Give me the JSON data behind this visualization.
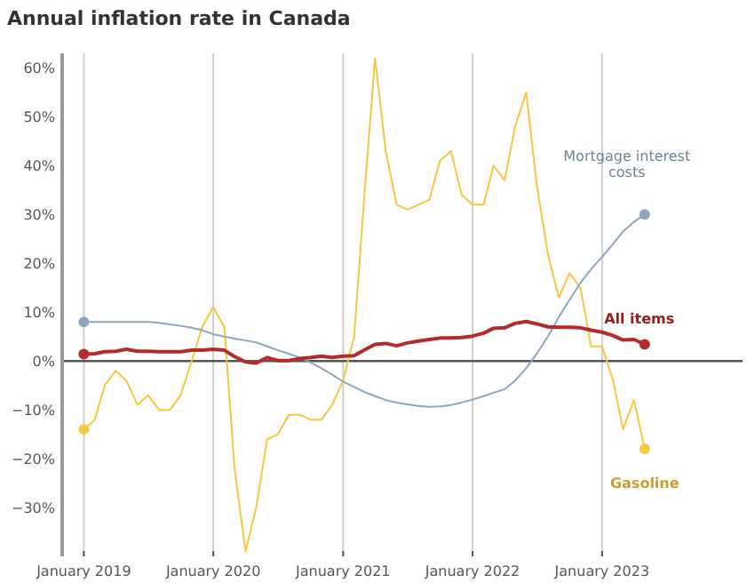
{
  "chart_data": {
    "type": "line",
    "title": "Annual inflation rate in Canada",
    "x": [
      "2019-01",
      "2019-02",
      "2019-03",
      "2019-04",
      "2019-05",
      "2019-06",
      "2019-07",
      "2019-08",
      "2019-09",
      "2019-10",
      "2019-11",
      "2019-12",
      "2020-01",
      "2020-02",
      "2020-03",
      "2020-04",
      "2020-05",
      "2020-06",
      "2020-07",
      "2020-08",
      "2020-09",
      "2020-10",
      "2020-11",
      "2020-12",
      "2021-01",
      "2021-02",
      "2021-03",
      "2021-04",
      "2021-05",
      "2021-06",
      "2021-07",
      "2021-08",
      "2021-09",
      "2021-10",
      "2021-11",
      "2021-12",
      "2022-01",
      "2022-02",
      "2022-03",
      "2022-04",
      "2022-05",
      "2022-06",
      "2022-07",
      "2022-08",
      "2022-09",
      "2022-10",
      "2022-11",
      "2022-12",
      "2023-01",
      "2023-02",
      "2023-03",
      "2023-04",
      "2023-05"
    ],
    "series": [
      {
        "name": "Gasoline",
        "color": "#f5c842",
        "values": [
          -14,
          -12,
          -5,
          -2,
          -4,
          -9,
          -7,
          -10,
          -10,
          -7,
          0,
          7,
          11,
          7,
          -22,
          -39,
          -30,
          -16,
          -15,
          -11,
          -11,
          -12,
          -12,
          -9,
          -4,
          5,
          33,
          62,
          43,
          32,
          31,
          32,
          33,
          41,
          43,
          34,
          32,
          32,
          40,
          37,
          48,
          55,
          36,
          22,
          13,
          18,
          15,
          3,
          3,
          -4,
          -14,
          -8,
          -18
        ]
      },
      {
        "name": "Mortgage interest costs",
        "color": "#8ea5bb",
        "values": [
          8,
          8,
          8,
          8,
          8,
          8,
          8,
          7.8,
          7.5,
          7.2,
          6.8,
          6.3,
          5.5,
          5,
          4.6,
          4.2,
          3.8,
          3,
          2.2,
          1.5,
          0.7,
          -0.3,
          -1.5,
          -2.8,
          -4.2,
          -5.3,
          -6.3,
          -7.2,
          -8,
          -8.5,
          -8.9,
          -9.2,
          -9.4,
          -9.3,
          -9,
          -8.5,
          -7.9,
          -7.2,
          -6.5,
          -5.8,
          -4,
          -1.5,
          1.5,
          5,
          9,
          12.5,
          16,
          18.8,
          21.3,
          24,
          26.5,
          28.5,
          30
        ]
      },
      {
        "name": "All items",
        "color": "#b52b2b",
        "values": [
          1.4,
          1.5,
          1.9,
          2.0,
          2.4,
          2.0,
          2.0,
          1.9,
          1.9,
          1.9,
          2.2,
          2.2,
          2.4,
          2.2,
          0.9,
          -0.2,
          -0.4,
          0.7,
          0.1,
          0.1,
          0.5,
          0.7,
          1.0,
          0.7,
          1.0,
          1.1,
          2.2,
          3.4,
          3.6,
          3.1,
          3.7,
          4.1,
          4.4,
          4.7,
          4.7,
          4.8,
          5.1,
          5.7,
          6.7,
          6.8,
          7.7,
          8.1,
          7.6,
          7.0,
          6.9,
          6.9,
          6.8,
          6.3,
          5.9,
          5.2,
          4.3,
          4.4,
          3.4
        ]
      }
    ],
    "xlim": [
      "2018-11",
      "2024-02"
    ],
    "xticks": [
      {
        "value": "2019-01",
        "label": "January 2019"
      },
      {
        "value": "2020-01",
        "label": "January 2020"
      },
      {
        "value": "2021-01",
        "label": "January 2021"
      },
      {
        "value": "2022-01",
        "label": "January 2022"
      },
      {
        "value": "2023-01",
        "label": "January 2023"
      }
    ],
    "ylim": [
      -40,
      63
    ],
    "yticks": [
      {
        "value": -30,
        "label": "−30%"
      },
      {
        "value": -20,
        "label": "−20%"
      },
      {
        "value": -10,
        "label": "−10%"
      },
      {
        "value": 0,
        "label": "0%"
      },
      {
        "value": 10,
        "label": "10%"
      },
      {
        "value": 20,
        "label": "20%"
      },
      {
        "value": 30,
        "label": "30%"
      },
      {
        "value": 40,
        "label": "40%"
      },
      {
        "value": 50,
        "label": "50%"
      },
      {
        "value": 60,
        "label": "60%"
      }
    ],
    "grid": "x",
    "ref_lines": [
      {
        "axis": "y",
        "value": 0,
        "color": "#555555"
      }
    ]
  }
}
